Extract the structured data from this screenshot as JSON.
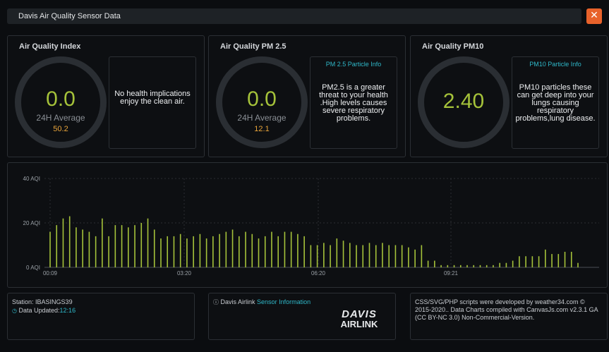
{
  "header": {
    "title": "Davis Air Quality Sensor Data",
    "close_icon": "close-icon"
  },
  "panels": [
    {
      "title": "Air Quality Index",
      "value": "0.0",
      "sub": "24H Average",
      "avg": "50.2",
      "info_label": "",
      "info_text": "No health implications enjoy the clean air."
    },
    {
      "title": "Air Quality PM 2.5",
      "value": "0.0",
      "sub": "24H Average",
      "avg": "12.1",
      "info_label": "PM 2.5 Particle Info",
      "info_text": "PM2.5 is a greater threat to your health .High levels causes severe respiratory problems."
    },
    {
      "title": "Air Quality PM10",
      "value": "2.40",
      "sub": "",
      "avg": "",
      "info_label": "PM10 Particle Info",
      "info_text": "PM10 particles these can get deep into your lungs causing respiratory problems,lung disease."
    }
  ],
  "chart_data": {
    "type": "bar",
    "y_ticks": [
      "0 AQI",
      "20 AQI",
      "40 AQI"
    ],
    "ylim": [
      0,
      40
    ],
    "x_ticks": [
      "00:09",
      "03:20",
      "06:20",
      "09:21"
    ],
    "values": [
      16,
      19,
      22,
      23,
      18,
      17,
      16,
      14,
      22,
      14,
      19,
      19,
      18,
      19,
      20,
      22,
      17,
      13,
      14,
      14,
      15,
      13,
      14,
      15,
      13,
      14,
      15,
      16,
      17,
      14,
      16,
      15,
      13,
      14,
      16,
      14,
      16,
      16,
      15,
      14,
      10,
      10,
      11,
      10,
      13,
      12,
      11,
      10,
      10,
      11,
      10,
      11,
      10,
      10,
      10,
      9,
      8,
      10,
      3,
      3,
      1,
      1,
      1,
      1,
      1,
      1,
      1,
      1,
      1,
      2,
      2,
      3,
      5,
      5,
      5,
      5,
      8,
      6,
      6,
      7,
      7,
      2
    ],
    "color": "#a5c23a",
    "grid": true
  },
  "footer": {
    "station_label": "Station:",
    "station_id": "IBASINGS39",
    "updated_label": "Data Updated:",
    "updated_time": "12:16",
    "airlink_label": "Davis Airlink",
    "sensor_link": "Sensor Information",
    "logo_text_1": "DAVIS",
    "logo_text_2": "AIRLINK",
    "credits": "CSS/SVG/PHP scripts were developed by weather34.com © 2015-2020.. Data Charts compiled with CanvasJs.com v2.3.1 GA (CC BY-NC 3.0) Non-Commercial-Version."
  }
}
